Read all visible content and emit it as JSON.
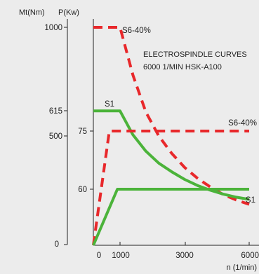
{
  "chart_data": {
    "type": "line",
    "title_lines": [
      "ELECTROSPINDLE CURVES",
      "6000 1/MIN HSK-A100"
    ],
    "torque_axis": {
      "label": "Mt(Nm)",
      "ticks": [
        "1000",
        "615",
        "500",
        "0"
      ]
    },
    "power_axis": {
      "label": "P(Kw)",
      "ticks": [
        "75",
        "60"
      ]
    },
    "x_axis": {
      "label": "n (1/min)",
      "ticks": [
        "0",
        "1000",
        "3000",
        "6000"
      ],
      "xlim": [
        0,
        6000
      ]
    },
    "series": [
      {
        "name": "S6-40%",
        "quantity": "torque",
        "unit": "Nm",
        "style": "dashed",
        "color": "#e8282b",
        "x": [
          0,
          1000,
          1500,
          2000,
          2500,
          3000,
          3500,
          4000,
          4500,
          5000,
          5500,
          6000
        ],
        "y": [
          1000,
          1000,
          780,
          610,
          500,
          420,
          355,
          305,
          265,
          230,
          205,
          185
        ]
      },
      {
        "name": "S1",
        "quantity": "torque",
        "unit": "Nm",
        "style": "solid",
        "color": "#4bb33a",
        "x": [
          0,
          1000,
          1500,
          2000,
          2500,
          3000,
          3500,
          4000,
          4500,
          5000,
          5500,
          6000
        ],
        "y": [
          615,
          615,
          505,
          430,
          375,
          335,
          300,
          272,
          250,
          232,
          218,
          208
        ]
      },
      {
        "name": "S6-40%",
        "quantity": "power",
        "unit": "kW",
        "style": "dashed",
        "color": "#e8282b",
        "x": [
          0,
          600,
          6000
        ],
        "y": [
          0,
          75,
          75
        ]
      },
      {
        "name": "S1",
        "quantity": "power",
        "unit": "kW",
        "style": "solid",
        "color": "#4bb33a",
        "x": [
          0,
          900,
          6000
        ],
        "y": [
          0,
          60,
          60
        ]
      }
    ],
    "annotations": [
      {
        "text": "S6-40%",
        "near_series": 0
      },
      {
        "text": "S1",
        "near_series": 1
      },
      {
        "text": "S6-40%",
        "near_series": 2
      },
      {
        "text": "S1",
        "near_series": 3
      }
    ],
    "background": "#ececec",
    "grid": false
  }
}
